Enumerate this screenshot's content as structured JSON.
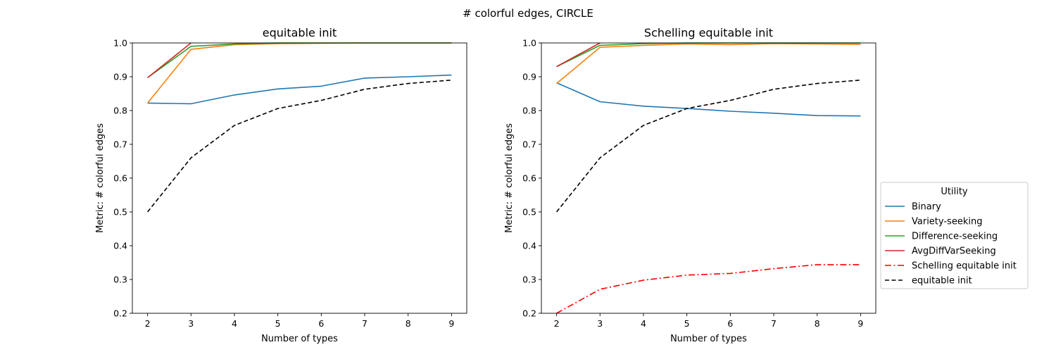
{
  "suptitle": "# colorful edges, CIRCLE",
  "chart_data": {
    "type": "line",
    "charts": [
      {
        "title": "equitable init",
        "xlabel": "Number of types",
        "ylabel": "Metric: # colorful edges",
        "xlim": [
          2,
          9
        ],
        "ylim": [
          0.2,
          1.0
        ],
        "xticks": [
          "2",
          "3",
          "4",
          "5",
          "6",
          "7",
          "8",
          "9"
        ],
        "yticks": [
          "0.2",
          "0.3",
          "0.4",
          "0.5",
          "0.6",
          "0.7",
          "0.8",
          "0.9",
          "1.0"
        ],
        "grid": false,
        "series": [
          {
            "name": "Binary",
            "color": "#1f77b4",
            "style": "solid",
            "x": [
              2,
              3,
              4,
              5,
              6,
              7,
              8,
              9
            ],
            "y": [
              0.822,
              0.82,
              0.846,
              0.864,
              0.872,
              0.896,
              0.9,
              0.905
            ]
          },
          {
            "name": "Variety-seeking",
            "color": "#ff7f0e",
            "style": "solid",
            "x": [
              2,
              3,
              4,
              5,
              6,
              7,
              8,
              9
            ],
            "y": [
              0.822,
              0.981,
              0.995,
              0.998,
              0.999,
              1.0,
              1.0,
              1.0
            ]
          },
          {
            "name": "Difference-seeking",
            "color": "#2ca02c",
            "style": "solid",
            "x": [
              2,
              3,
              4,
              5,
              6,
              7,
              8,
              9
            ],
            "y": [
              0.897,
              0.99,
              0.997,
              1.0,
              1.0,
              1.0,
              1.0,
              1.0
            ]
          },
          {
            "name": "AvgDiffVarSeeking",
            "color": "#d62728",
            "style": "solid",
            "x": [
              2,
              3
            ],
            "y": [
              0.897,
              1.0
            ]
          },
          {
            "name": "equitable init",
            "color": "#000000",
            "style": "dashed",
            "x": [
              2,
              3,
              4,
              5,
              6,
              7,
              8,
              9
            ],
            "y": [
              0.5,
              0.66,
              0.756,
              0.806,
              0.83,
              0.863,
              0.88,
              0.89
            ]
          }
        ]
      },
      {
        "title": "Schelling equitable init",
        "xlabel": "Number of types",
        "ylabel": "Metric: # colorful edges",
        "xlim": [
          2,
          9
        ],
        "ylim": [
          0.2,
          1.0
        ],
        "xticks": [
          "2",
          "3",
          "4",
          "5",
          "6",
          "7",
          "8",
          "9"
        ],
        "yticks": [
          "0.2",
          "0.3",
          "0.4",
          "0.5",
          "0.6",
          "0.7",
          "0.8",
          "0.9",
          "1.0"
        ],
        "grid": false,
        "series": [
          {
            "name": "Binary",
            "color": "#1f77b4",
            "style": "solid",
            "x": [
              2,
              3,
              4,
              5,
              6,
              7,
              8,
              9
            ],
            "y": [
              0.882,
              0.826,
              0.813,
              0.806,
              0.798,
              0.792,
              0.785,
              0.784
            ]
          },
          {
            "name": "Variety-seeking",
            "color": "#ff7f0e",
            "style": "solid",
            "x": [
              2,
              3,
              4,
              5,
              6,
              7,
              8,
              9
            ],
            "y": [
              0.88,
              0.987,
              0.993,
              0.997,
              0.995,
              0.998,
              0.997,
              0.996
            ]
          },
          {
            "name": "Difference-seeking",
            "color": "#2ca02c",
            "style": "solid",
            "x": [
              2,
              3,
              4,
              5,
              6,
              7,
              8,
              9
            ],
            "y": [
              0.93,
              0.993,
              0.998,
              1.0,
              1.0,
              1.0,
              1.0,
              1.0
            ]
          },
          {
            "name": "AvgDiffVarSeeking",
            "color": "#d62728",
            "style": "solid",
            "x": [
              2,
              3
            ],
            "y": [
              0.93,
              1.0
            ]
          },
          {
            "name": "Schelling equitable init",
            "color": "#ff0000",
            "style": "dashdot",
            "x": [
              2,
              3,
              4,
              5,
              6,
              7,
              8,
              9
            ],
            "y": [
              0.2,
              0.271,
              0.298,
              0.313,
              0.318,
              0.332,
              0.344,
              0.344
            ]
          },
          {
            "name": "equitable init",
            "color": "#000000",
            "style": "dashed",
            "x": [
              2,
              3,
              4,
              5,
              6,
              7,
              8,
              9
            ],
            "y": [
              0.5,
              0.66,
              0.756,
              0.806,
              0.83,
              0.863,
              0.88,
              0.89
            ]
          }
        ]
      }
    ],
    "legend": {
      "title": "Utility",
      "placement": "right",
      "entries": [
        {
          "label": "Binary",
          "color": "#1f77b4",
          "style": "solid"
        },
        {
          "label": "Variety-seeking",
          "color": "#ff7f0e",
          "style": "solid"
        },
        {
          "label": "Difference-seeking",
          "color": "#2ca02c",
          "style": "solid"
        },
        {
          "label": "AvgDiffVarSeeking",
          "color": "#d62728",
          "style": "solid"
        },
        {
          "label": "Schelling equitable init",
          "color": "#ff0000",
          "style": "dashdot"
        },
        {
          "label": "equitable init",
          "color": "#000000",
          "style": "dashed"
        }
      ]
    }
  }
}
